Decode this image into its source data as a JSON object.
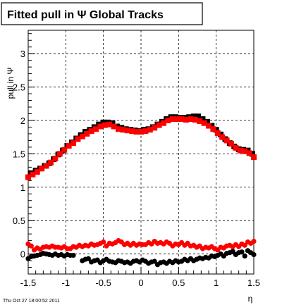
{
  "chart_data": {
    "type": "scatter",
    "title": "Fitted pull in  Ψ   Global Tracks",
    "xlabel": "η",
    "ylabel": "pull in Ψ",
    "xlim": [
      -1.5,
      1.5
    ],
    "ylim": [
      -0.3,
      3.35
    ],
    "x_ticks": [
      "-1.5",
      "-1",
      "-0.5",
      "0",
      "0.5",
      "1",
      "1.5"
    ],
    "y_ticks": [
      "0",
      "0.5",
      "1",
      "1.5",
      "2",
      "2.5",
      "3"
    ],
    "grid": true,
    "timestamp": "Thu Oct 27 18:00:52 2011",
    "series": [
      {
        "marker": "square",
        "color": "#000000",
        "x": [
          -1.46,
          -1.4,
          -1.34,
          -1.28,
          -1.22,
          -1.16,
          -1.1,
          -1.04,
          -0.98,
          -0.92,
          -0.86,
          -0.8,
          -0.74,
          -0.68,
          -0.62,
          -0.56,
          -0.5,
          -0.44,
          -0.38,
          -0.32,
          -0.26,
          -0.2,
          -0.14,
          -0.08,
          -0.02,
          0.04,
          0.1,
          0.16,
          0.22,
          0.28,
          0.34,
          0.4,
          0.46,
          0.52,
          0.58,
          0.64,
          0.7,
          0.76,
          0.82,
          0.88,
          0.94,
          1.0,
          1.06,
          1.12,
          1.18,
          1.24,
          1.3,
          1.36,
          1.42,
          1.48
        ],
        "y": [
          1.21,
          1.25,
          1.28,
          1.32,
          1.36,
          1.42,
          1.49,
          1.55,
          1.62,
          1.67,
          1.73,
          1.78,
          1.83,
          1.86,
          1.9,
          1.94,
          1.97,
          1.97,
          1.96,
          1.91,
          1.89,
          1.87,
          1.86,
          1.85,
          1.84,
          1.86,
          1.87,
          1.9,
          1.94,
          1.98,
          2.02,
          2.05,
          2.05,
          2.04,
          2.04,
          2.05,
          2.06,
          2.06,
          2.02,
          1.98,
          1.92,
          1.86,
          1.79,
          1.72,
          1.66,
          1.61,
          1.57,
          1.56,
          1.55,
          1.5
        ]
      },
      {
        "marker": "square",
        "color": "#ff0000",
        "x": [
          -1.5,
          -1.44,
          -1.38,
          -1.32,
          -1.26,
          -1.2,
          -1.14,
          -1.08,
          -1.02,
          -0.96,
          -0.9,
          -0.84,
          -0.78,
          -0.72,
          -0.66,
          -0.6,
          -0.54,
          -0.48,
          -0.42,
          -0.36,
          -0.3,
          -0.24,
          -0.18,
          -0.12,
          -0.06,
          0.0,
          0.06,
          0.12,
          0.18,
          0.24,
          0.3,
          0.36,
          0.42,
          0.48,
          0.54,
          0.6,
          0.66,
          0.72,
          0.78,
          0.84,
          0.9,
          0.96,
          1.02,
          1.08,
          1.14,
          1.2,
          1.26,
          1.32,
          1.38,
          1.44,
          1.5
        ],
        "y": [
          1.15,
          1.19,
          1.23,
          1.28,
          1.32,
          1.37,
          1.43,
          1.5,
          1.56,
          1.62,
          1.66,
          1.72,
          1.76,
          1.8,
          1.84,
          1.87,
          1.91,
          1.93,
          1.94,
          1.91,
          1.87,
          1.86,
          1.85,
          1.84,
          1.83,
          1.83,
          1.84,
          1.86,
          1.89,
          1.93,
          1.96,
          2.0,
          2.02,
          2.02,
          2.02,
          2.01,
          2.02,
          2.01,
          1.99,
          1.96,
          1.92,
          1.87,
          1.81,
          1.75,
          1.7,
          1.65,
          1.59,
          1.55,
          1.54,
          1.51,
          1.45
        ]
      },
      {
        "marker": "circle",
        "color": "#000000",
        "x": [
          -1.5,
          -1.46,
          -1.42,
          -1.38,
          -1.34,
          -1.3,
          -1.26,
          -1.22,
          -1.18,
          -1.14,
          -1.1,
          -1.06,
          -1.02,
          -0.98,
          -0.94,
          -0.9,
          -0.78,
          -0.74,
          -0.7,
          -0.66,
          -0.62,
          -0.58,
          -0.54,
          -0.5,
          -0.46,
          -0.42,
          -0.38,
          -0.34,
          -0.3,
          -0.26,
          -0.22,
          -0.18,
          -0.14,
          -0.1,
          -0.06,
          -0.02,
          0.02,
          0.06,
          0.1,
          0.14,
          0.18,
          0.22,
          0.26,
          0.3,
          0.34,
          0.38,
          0.42,
          0.46,
          0.5,
          0.54,
          0.58,
          0.62,
          0.66,
          0.7,
          0.74,
          0.78,
          0.82,
          0.86,
          0.9,
          0.94,
          0.98,
          1.02,
          1.06,
          1.1,
          1.14,
          1.18,
          1.22,
          1.26,
          1.3,
          1.34,
          1.38,
          1.42,
          1.46,
          1.5
        ],
        "y": [
          -0.07,
          -0.04,
          -0.03,
          -0.02,
          -0.01,
          0.01,
          0.0,
          -0.01,
          -0.02,
          0.0,
          -0.02,
          -0.01,
          -0.03,
          -0.01,
          -0.02,
          -0.02,
          -0.1,
          -0.08,
          -0.07,
          -0.12,
          -0.1,
          -0.09,
          -0.13,
          -0.1,
          -0.08,
          -0.11,
          -0.12,
          -0.13,
          -0.1,
          -0.11,
          -0.13,
          -0.12,
          -0.14,
          -0.11,
          -0.1,
          -0.12,
          -0.09,
          -0.11,
          -0.14,
          -0.12,
          -0.11,
          -0.16,
          -0.13,
          -0.12,
          -0.14,
          -0.11,
          -0.13,
          -0.1,
          -0.12,
          -0.11,
          -0.08,
          -0.1,
          -0.07,
          -0.1,
          -0.08,
          -0.06,
          -0.07,
          -0.05,
          -0.06,
          -0.03,
          -0.04,
          -0.02,
          0.0,
          -0.03,
          0.01,
          0.02,
          0.04,
          -0.01,
          0.02,
          0.03,
          -0.03,
          0.05,
          0.02,
          -0.01
        ]
      },
      {
        "marker": "circle",
        "color": "#ff0000",
        "x": [
          -1.5,
          -1.46,
          -1.42,
          -1.38,
          -1.34,
          -1.3,
          -1.26,
          -1.22,
          -1.18,
          -1.14,
          -1.1,
          -1.06,
          -1.02,
          -0.98,
          -0.94,
          -0.9,
          -0.86,
          -0.82,
          -0.78,
          -0.74,
          -0.7,
          -0.66,
          -0.62,
          -0.58,
          -0.54,
          -0.5,
          -0.46,
          -0.42,
          -0.38,
          -0.34,
          -0.3,
          -0.26,
          -0.22,
          -0.18,
          -0.14,
          -0.1,
          -0.06,
          -0.02,
          0.02,
          0.06,
          0.1,
          0.14,
          0.18,
          0.22,
          0.26,
          0.3,
          0.34,
          0.38,
          0.42,
          0.46,
          0.5,
          0.54,
          0.58,
          0.62,
          0.66,
          0.7,
          0.74,
          0.78,
          0.82,
          0.86,
          0.9,
          0.94,
          0.98,
          1.02,
          1.06,
          1.1,
          1.14,
          1.18,
          1.22,
          1.26,
          1.3,
          1.34,
          1.38,
          1.42,
          1.46,
          1.5
        ],
        "y": [
          0.15,
          0.12,
          0.06,
          0.09,
          0.07,
          0.1,
          0.11,
          0.1,
          0.12,
          0.1,
          0.1,
          0.09,
          0.11,
          0.08,
          0.08,
          0.11,
          0.1,
          0.13,
          0.11,
          0.13,
          0.12,
          0.15,
          0.13,
          0.14,
          0.16,
          0.18,
          0.12,
          0.16,
          0.15,
          0.17,
          0.2,
          0.18,
          0.14,
          0.16,
          0.13,
          0.16,
          0.13,
          0.15,
          0.14,
          0.14,
          0.17,
          0.15,
          0.19,
          0.16,
          0.17,
          0.15,
          0.18,
          0.16,
          0.12,
          0.15,
          0.14,
          0.17,
          0.13,
          0.16,
          0.12,
          0.13,
          0.1,
          0.12,
          0.08,
          0.1,
          0.09,
          0.11,
          0.08,
          0.06,
          0.1,
          0.09,
          0.12,
          0.13,
          0.11,
          0.14,
          0.11,
          0.15,
          0.13,
          0.18,
          0.16,
          0.19
        ]
      }
    ]
  }
}
